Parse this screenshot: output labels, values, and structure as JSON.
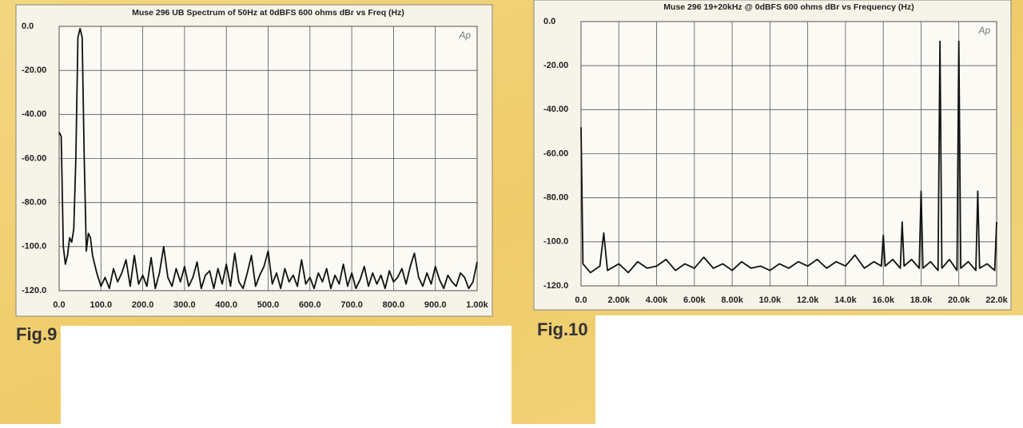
{
  "chart_data": [
    {
      "type": "line",
      "title": "Muse 296 UB  Spectrum of 50Hz at 0dBFS  600 ohms  dBr vs Freq (Hz)",
      "logo": "Ap",
      "caption": "Fig.9",
      "color": "#111111",
      "grid": true,
      "xlim": [
        0,
        1000
      ],
      "ylim": [
        -120,
        0
      ],
      "xticks": [
        {
          "value": 0,
          "label": "0.0"
        },
        {
          "value": 100,
          "label": "100.0"
        },
        {
          "value": 200,
          "label": "200.0"
        },
        {
          "value": 300,
          "label": "300.0"
        },
        {
          "value": 400,
          "label": "400.0"
        },
        {
          "value": 500,
          "label": "500.0"
        },
        {
          "value": 600,
          "label": "600.0"
        },
        {
          "value": 700,
          "label": "700.0"
        },
        {
          "value": 800,
          "label": "800.0"
        },
        {
          "value": 900,
          "label": "900.0"
        },
        {
          "value": 1000,
          "label": "1.00k"
        }
      ],
      "yticks": [
        {
          "value": 0,
          "label": "0.0"
        },
        {
          "value": -20,
          "label": "-20.00"
        },
        {
          "value": -40,
          "label": "-40.00"
        },
        {
          "value": -60,
          "label": "-60.00"
        },
        {
          "value": -80,
          "label": "-80.00"
        },
        {
          "value": -100,
          "label": "-100.0"
        },
        {
          "value": -120,
          "label": "-120.0"
        }
      ],
      "x": [
        0,
        5,
        10,
        15,
        20,
        25,
        30,
        35,
        40,
        45,
        50,
        55,
        60,
        65,
        70,
        75,
        80,
        90,
        100,
        110,
        120,
        130,
        140,
        150,
        160,
        170,
        180,
        190,
        200,
        210,
        220,
        230,
        240,
        250,
        260,
        270,
        280,
        290,
        300,
        310,
        320,
        330,
        340,
        350,
        360,
        370,
        380,
        390,
        400,
        410,
        420,
        430,
        440,
        450,
        460,
        470,
        480,
        490,
        500,
        510,
        520,
        530,
        540,
        550,
        560,
        570,
        580,
        590,
        600,
        610,
        620,
        630,
        640,
        650,
        660,
        670,
        680,
        690,
        700,
        710,
        720,
        730,
        740,
        750,
        760,
        770,
        780,
        790,
        800,
        810,
        820,
        830,
        840,
        850,
        860,
        870,
        880,
        890,
        900,
        910,
        920,
        930,
        940,
        950,
        960,
        970,
        980,
        990,
        1000
      ],
      "values": [
        -48,
        -50,
        -100,
        -108,
        -104,
        -96,
        -98,
        -92,
        -60,
        -5,
        -1,
        -5,
        -60,
        -102,
        -94,
        -96,
        -104,
        -112,
        -118,
        -114,
        -119,
        -110,
        -116,
        -112,
        -106,
        -118,
        -104,
        -117,
        -113,
        -118,
        -105,
        -119,
        -112,
        -100,
        -114,
        -118,
        -110,
        -116,
        -109,
        -118,
        -114,
        -107,
        -119,
        -113,
        -111,
        -119,
        -110,
        -117,
        -108,
        -118,
        -103,
        -116,
        -119,
        -112,
        -104,
        -118,
        -113,
        -109,
        -102,
        -117,
        -112,
        -119,
        -110,
        -116,
        -113,
        -118,
        -106,
        -117,
        -114,
        -119,
        -112,
        -116,
        -110,
        -119,
        -113,
        -117,
        -108,
        -118,
        -112,
        -119,
        -115,
        -109,
        -118,
        -112,
        -117,
        -113,
        -119,
        -111,
        -116,
        -114,
        -110,
        -117,
        -109,
        -103,
        -114,
        -118,
        -112,
        -117,
        -109,
        -115,
        -119,
        -113,
        -116,
        -118,
        -112,
        -114,
        -119,
        -116,
        -107
      ]
    },
    {
      "type": "line",
      "title": "Muse 296  19+20kHz @ 0dBFS  600 ohms  dBr vs Frequency (Hz)",
      "logo": "Ap",
      "caption": "Fig.10",
      "color": "#111111",
      "grid": true,
      "xlim": [
        0,
        22000
      ],
      "ylim": [
        -120,
        0
      ],
      "xticks": [
        {
          "value": 0,
          "label": "0.0"
        },
        {
          "value": 2000,
          "label": "2.00k"
        },
        {
          "value": 4000,
          "label": "4.00k"
        },
        {
          "value": 6000,
          "label": "6.00k"
        },
        {
          "value": 8000,
          "label": "8.00k"
        },
        {
          "value": 10000,
          "label": "10.0k"
        },
        {
          "value": 12000,
          "label": "12.0k"
        },
        {
          "value": 14000,
          "label": "14.0k"
        },
        {
          "value": 16000,
          "label": "16.0k"
        },
        {
          "value": 18000,
          "label": "18.0k"
        },
        {
          "value": 20000,
          "label": "20.0k"
        },
        {
          "value": 22000,
          "label": "22.0k"
        }
      ],
      "yticks": [
        {
          "value": 0,
          "label": "0.0"
        },
        {
          "value": -20,
          "label": "-20.00"
        },
        {
          "value": -40,
          "label": "-40.00"
        },
        {
          "value": -60,
          "label": "-60.00"
        },
        {
          "value": -80,
          "label": "-80.00"
        },
        {
          "value": -100,
          "label": "-100.0"
        },
        {
          "value": -120,
          "label": "-120.0"
        }
      ],
      "x": [
        0,
        100,
        500,
        1000,
        1200,
        1400,
        2000,
        2500,
        3000,
        3500,
        4000,
        4500,
        5000,
        5500,
        6000,
        6500,
        7000,
        7500,
        8000,
        8500,
        9000,
        9500,
        10000,
        10500,
        11000,
        11500,
        12000,
        12500,
        13000,
        13500,
        14000,
        14500,
        15000,
        15500,
        15900,
        16000,
        16100,
        16500,
        16900,
        17000,
        17100,
        17500,
        17900,
        18000,
        18100,
        18500,
        18900,
        19000,
        19100,
        19500,
        19900,
        20000,
        20100,
        20500,
        20900,
        21000,
        21100,
        21500,
        21900,
        22000
      ],
      "values": [
        -48,
        -110,
        -114,
        -111,
        -96,
        -113,
        -110,
        -114,
        -109,
        -112,
        -111,
        -108,
        -113,
        -110,
        -112,
        -107,
        -112,
        -110,
        -113,
        -109,
        -112,
        -111,
        -113,
        -110,
        -112,
        -109,
        -111,
        -108,
        -112,
        -109,
        -111,
        -106,
        -112,
        -109,
        -111,
        -97,
        -111,
        -108,
        -112,
        -91,
        -111,
        -108,
        -112,
        -77,
        -112,
        -109,
        -113,
        -9,
        -112,
        -108,
        -113,
        -9,
        -112,
        -109,
        -113,
        -77,
        -112,
        -110,
        -113,
        -91
      ]
    }
  ]
}
